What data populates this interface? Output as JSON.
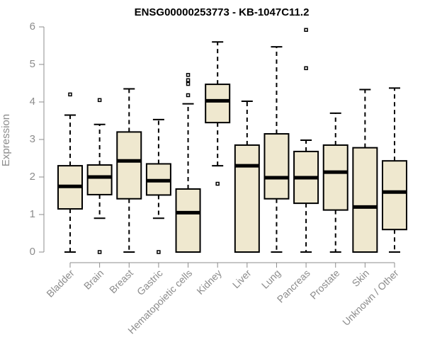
{
  "chart_data": {
    "type": "boxplot",
    "title": "ENSG00000253773 - KB-1047C11.2",
    "xlabel": "",
    "ylabel": "Expression",
    "ylim": [
      0,
      6
    ],
    "yticks": [
      0,
      1,
      2,
      3,
      4,
      5,
      6
    ],
    "categories": [
      "Bladder",
      "Brain",
      "Breast",
      "Gastric",
      "Hematopoietic cells",
      "Kidney",
      "Liver",
      "Lung",
      "Pancreas",
      "Prostate",
      "Skin",
      "Unknown / Other"
    ],
    "boxes": [
      {
        "name": "Bladder",
        "whisker_low": 0.0,
        "q1": 1.15,
        "median": 1.75,
        "q3": 2.3,
        "whisker_high": 3.65,
        "outliers": [
          4.2
        ]
      },
      {
        "name": "Brain",
        "whisker_low": 0.9,
        "q1": 1.53,
        "median": 2.0,
        "q3": 2.32,
        "whisker_high": 3.4,
        "outliers": [
          4.05,
          0.0
        ]
      },
      {
        "name": "Breast",
        "whisker_low": 0.0,
        "q1": 1.42,
        "median": 2.43,
        "q3": 3.2,
        "whisker_high": 4.35,
        "outliers": []
      },
      {
        "name": "Gastric",
        "whisker_low": 0.9,
        "q1": 1.52,
        "median": 1.9,
        "q3": 2.35,
        "whisker_high": 3.53,
        "outliers": [
          0.0
        ]
      },
      {
        "name": "Hematopoietic cells",
        "whisker_low": 0.0,
        "q1": 0.0,
        "median": 1.05,
        "q3": 1.68,
        "whisker_high": 3.95,
        "outliers": [
          4.18,
          4.48,
          4.58,
          4.72
        ]
      },
      {
        "name": "Kidney",
        "whisker_low": 2.3,
        "q1": 3.45,
        "median": 4.03,
        "q3": 4.47,
        "whisker_high": 5.6,
        "outliers": [
          1.82
        ]
      },
      {
        "name": "Liver",
        "whisker_low": 0.0,
        "q1": 0.0,
        "median": 2.3,
        "q3": 2.85,
        "whisker_high": 4.02,
        "outliers": []
      },
      {
        "name": "Lung",
        "whisker_low": 0.0,
        "q1": 1.42,
        "median": 1.98,
        "q3": 3.15,
        "whisker_high": 5.47,
        "outliers": []
      },
      {
        "name": "Pancreas",
        "whisker_low": 0.0,
        "q1": 1.3,
        "median": 1.98,
        "q3": 2.68,
        "whisker_high": 2.98,
        "outliers": [
          4.9,
          5.92
        ]
      },
      {
        "name": "Prostate",
        "whisker_low": 0.0,
        "q1": 1.12,
        "median": 2.13,
        "q3": 2.85,
        "whisker_high": 3.7,
        "outliers": []
      },
      {
        "name": "Skin",
        "whisker_low": 0.0,
        "q1": 0.0,
        "median": 1.2,
        "q3": 2.78,
        "whisker_high": 4.33,
        "outliers": []
      },
      {
        "name": "Unknown / Other",
        "whisker_low": 0.0,
        "q1": 0.6,
        "median": 1.6,
        "q3": 2.43,
        "whisker_high": 4.37,
        "outliers": []
      }
    ]
  },
  "colors": {
    "box_fill": "#efe8cf",
    "box_stroke": "#000000",
    "axis": "#8c8c8c",
    "title": "#000000"
  }
}
